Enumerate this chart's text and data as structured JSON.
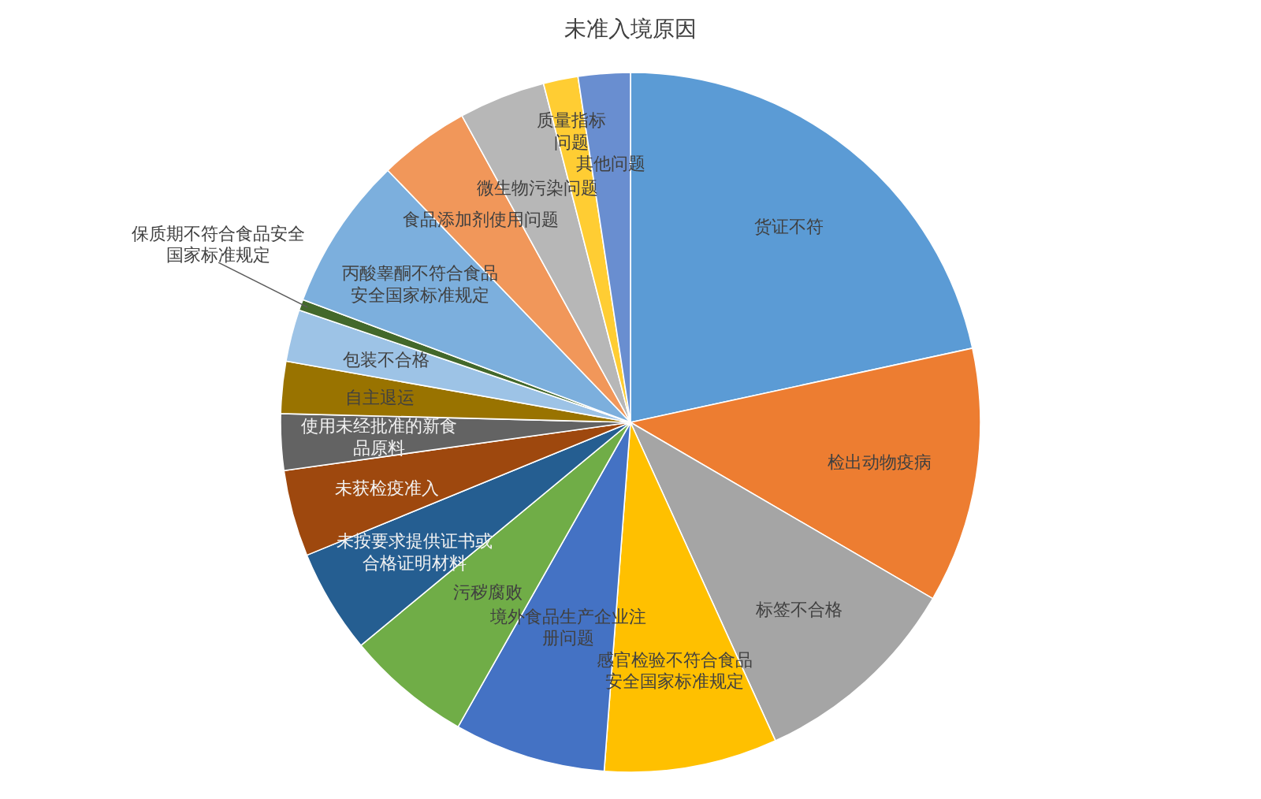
{
  "chart_data": {
    "type": "pie",
    "title": "未准入境原因",
    "categories": [
      "货证不符",
      "检出动物疫病",
      "标签不合格",
      "感官检验不符合食品安全国家标准规定",
      "境外食品生产企业注册问题",
      "污秽腐败",
      "未按要求提供证书或合格证明材料",
      "未获检疫准入",
      "使用未经批准的新食品原料",
      "自主退运",
      "包装不合格",
      "保质期不符合食品安全国家标准规定",
      "丙酸睾酮不符合食品安全国家标准规定",
      "食品添加剂使用问题",
      "微生物污染问题",
      "质量指标问题",
      "其他问题"
    ],
    "values": [
      21.6,
      11.8,
      9.8,
      8.0,
      7.0,
      5.8,
      4.8,
      4.0,
      2.6,
      2.4,
      2.4,
      0.5,
      7.1,
      4.2,
      4.0,
      1.6,
      2.4
    ],
    "colors": [
      "#5b9bd5",
      "#ed7d31",
      "#a5a5a5",
      "#ffc000",
      "#4472c4",
      "#70ad47",
      "#255e91",
      "#9e480e",
      "#636363",
      "#997300",
      "#9dc3e6",
      "#43682b",
      "#7cafdd",
      "#f1975a",
      "#b7b7b7",
      "#ffcd33",
      "#698ed0"
    ]
  }
}
